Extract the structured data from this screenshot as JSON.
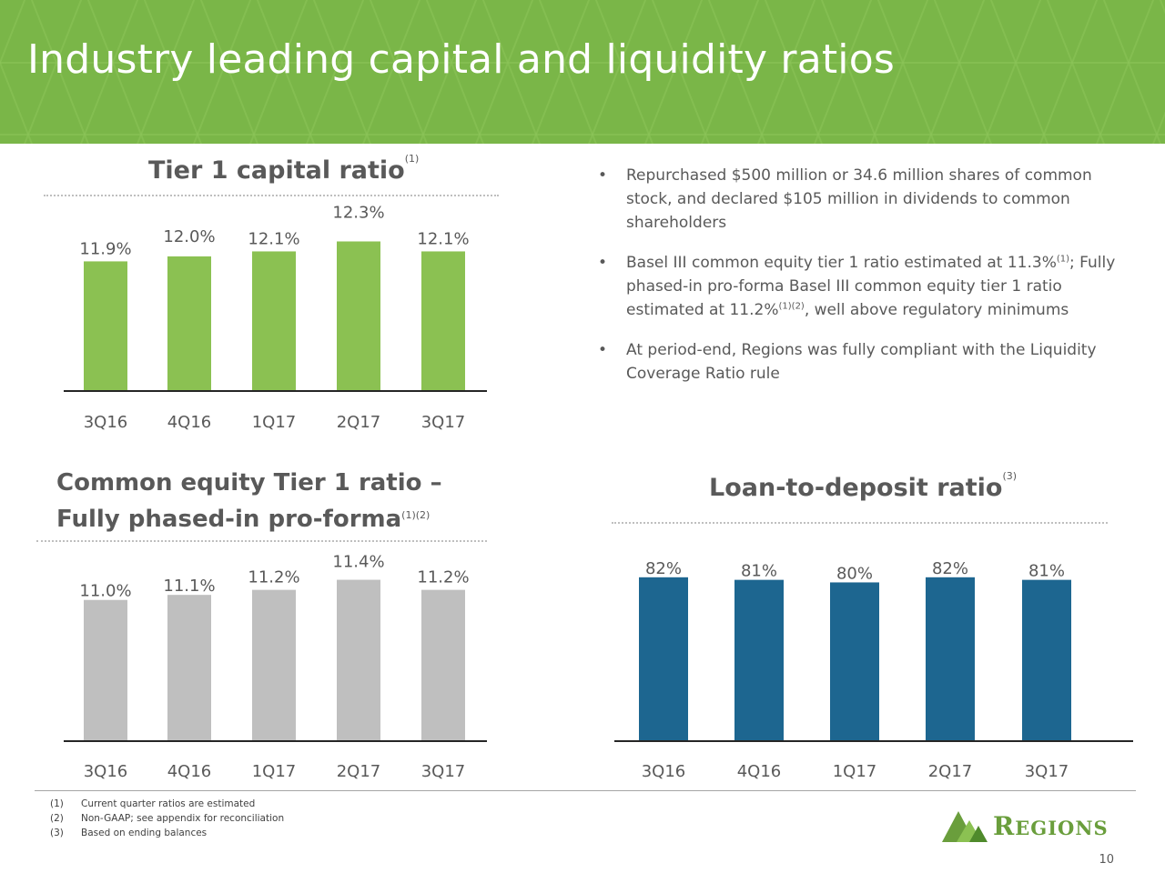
{
  "header": {
    "title": "Industry leading capital and liquidity ratios",
    "bg_color": "#7ab648"
  },
  "chart_data": [
    {
      "type": "bar",
      "title": "Tier 1 capital ratio",
      "title_note": "(1)",
      "categories": [
        "3Q16",
        "4Q16",
        "1Q17",
        "2Q17",
        "3Q17"
      ],
      "values": [
        11.9,
        12.0,
        12.1,
        12.3,
        12.1
      ],
      "value_labels": [
        "11.9%",
        "12.0%",
        "12.1%",
        "12.3%",
        "12.1%"
      ],
      "ylim": [
        9.3,
        12.4
      ],
      "color": "#8bc152"
    },
    {
      "type": "bar",
      "title_line1": "Common equity Tier 1 ratio –",
      "title_line2": "Fully phased-in pro-forma",
      "title_note": "(1)(2)",
      "categories": [
        "3Q16",
        "4Q16",
        "1Q17",
        "2Q17",
        "3Q17"
      ],
      "values": [
        11.0,
        11.1,
        11.2,
        11.4,
        11.2
      ],
      "value_labels": [
        "11.0%",
        "11.1%",
        "11.2%",
        "11.4%",
        "11.2%"
      ],
      "ylim": [
        8.2,
        11.5
      ],
      "color": "#bfbfbf"
    },
    {
      "type": "bar",
      "title": "Loan-to-deposit ratio",
      "title_note": "(3)",
      "categories": [
        "3Q16",
        "4Q16",
        "1Q17",
        "2Q17",
        "3Q17"
      ],
      "values": [
        82,
        81,
        80,
        82,
        81
      ],
      "value_labels": [
        "82%",
        "81%",
        "80%",
        "82%",
        "81%"
      ],
      "ylim": [
        18,
        83
      ],
      "color": "#1d6690"
    }
  ],
  "bullets": [
    {
      "text": "Repurchased $500 million or 34.6 million shares of common stock, and declared $105 million in dividends to common shareholders"
    },
    {
      "text_a": "Basel III common equity tier 1 ratio estimated at 11.3%",
      "note_a": "(1)",
      "text_b": "; Fully phased-in pro-forma Basel III common equity tier 1 ratio estimated at 11.2%",
      "note_b": "(1)(2)",
      "text_c": ", well above regulatory minimums"
    },
    {
      "text": "At period-end, Regions was fully compliant with the Liquidity Coverage Ratio rule"
    }
  ],
  "footnotes": [
    {
      "num": "(1)",
      "text": "Current quarter ratios are estimated"
    },
    {
      "num": "(2)",
      "text": "Non-GAAP; see appendix for reconciliation"
    },
    {
      "num": "(3)",
      "text": "Based on ending balances"
    }
  ],
  "logo": {
    "text": "Regions",
    "color": "#6a9e3c"
  },
  "page_number": "10"
}
